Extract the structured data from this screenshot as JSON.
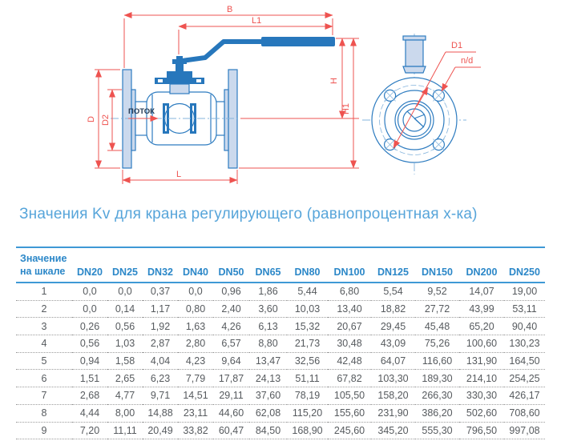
{
  "colors": {
    "title_blue": "#57a5da",
    "header_blue": "#2b87c8",
    "line_blue": "#3e99d5",
    "dim_red": "#ee5350",
    "drawing_blue": "#2e7cc0",
    "drawing_fill": "#cbd9ed",
    "drawing_solid": "#2777bc",
    "centerline_blue": "#85b4dc",
    "table_text": "#565a5e",
    "flow_text": "#243b55"
  },
  "diagram": {
    "labels": {
      "dim_b": "B",
      "dim_l1": "L1",
      "dim_h": "H",
      "dim_h1": "H1",
      "dim_d": "D",
      "dim_d2": "D2",
      "dim_l": "L",
      "flow": "ПОТОК",
      "dim_d1": "D1",
      "dim_nd": "n/d"
    }
  },
  "title": "Значения Kv для крана регулирующего (равнопроцентная х-ка)",
  "table": {
    "row_header_line1": "Значение",
    "row_header_line2": "на шкале",
    "columns": [
      "DN20",
      "DN25",
      "DN32",
      "DN40",
      "DN50",
      "DN65",
      "DN80",
      "DN100",
      "DN125",
      "DN150",
      "DN200",
      "DN250"
    ],
    "rows": [
      {
        "scale": "1",
        "values": [
          "0,0",
          "0,0",
          "0,37",
          "0,0",
          "0,96",
          "1,86",
          "5,44",
          "6,80",
          "5,54",
          "9,52",
          "14,07",
          "19,00"
        ]
      },
      {
        "scale": "2",
        "values": [
          "0,0",
          "0,14",
          "1,17",
          "0,80",
          "2,40",
          "3,60",
          "10,03",
          "13,40",
          "18,82",
          "27,72",
          "43,99",
          "53,11"
        ]
      },
      {
        "scale": "3",
        "values": [
          "0,26",
          "0,56",
          "1,92",
          "1,63",
          "4,26",
          "6,13",
          "15,32",
          "20,67",
          "29,45",
          "45,48",
          "65,20",
          "90,40"
        ]
      },
      {
        "scale": "4",
        "values": [
          "0,56",
          "1,03",
          "2,87",
          "2,80",
          "6,57",
          "8,80",
          "21,73",
          "30,48",
          "43,09",
          "75,26",
          "100,60",
          "130,23"
        ]
      },
      {
        "scale": "5",
        "values": [
          "0,94",
          "1,58",
          "4,04",
          "4,23",
          "9,64",
          "13,47",
          "32,56",
          "42,48",
          "64,07",
          "116,60",
          "131,90",
          "164,50"
        ]
      },
      {
        "scale": "6",
        "values": [
          "1,51",
          "2,65",
          "6,23",
          "7,79",
          "17,87",
          "24,13",
          "51,11",
          "67,82",
          "103,30",
          "189,30",
          "214,10",
          "254,25"
        ]
      },
      {
        "scale": "7",
        "values": [
          "2,68",
          "4,77",
          "9,71",
          "14,51",
          "29,11",
          "37,60",
          "78,19",
          "105,50",
          "158,20",
          "266,30",
          "330,30",
          "426,17"
        ]
      },
      {
        "scale": "8",
        "values": [
          "4,44",
          "8,00",
          "14,88",
          "23,11",
          "44,60",
          "62,08",
          "115,20",
          "155,60",
          "231,90",
          "386,20",
          "502,60",
          "708,60"
        ]
      },
      {
        "scale": "9",
        "values": [
          "7,20",
          "11,11",
          "20,49",
          "33,82",
          "60,47",
          "84,50",
          "168,90",
          "245,60",
          "345,20",
          "555,30",
          "796,50",
          "997,08"
        ]
      }
    ]
  }
}
